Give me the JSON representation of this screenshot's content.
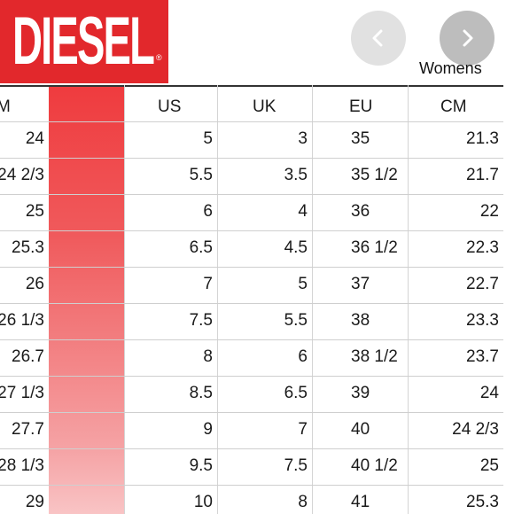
{
  "logo": {
    "text": "DIESEL",
    "mark": "®"
  },
  "nav": {
    "prev_icon": "chevron-left-icon",
    "next_icon": "chevron-right-icon"
  },
  "section_label": "Womens",
  "colors": {
    "brand_red": "#e2282c",
    "strip_red": "#ef3b3e"
  },
  "table": {
    "headers": [
      "M",
      "US",
      "UK",
      "EU",
      "CM"
    ],
    "rows": [
      [
        "24",
        "5",
        "3",
        "35",
        "21.3"
      ],
      [
        "24 2/3",
        "5.5",
        "3.5",
        "35 1/2",
        "21.7"
      ],
      [
        "25",
        "6",
        "4",
        "36",
        "22"
      ],
      [
        "25.3",
        "6.5",
        "4.5",
        "36 1/2",
        "22.3"
      ],
      [
        "26",
        "7",
        "5",
        "37",
        "22.7"
      ],
      [
        "26 1/3",
        "7.5",
        "5.5",
        "38",
        "23.3"
      ],
      [
        "26.7",
        "8",
        "6",
        "38 1/2",
        "23.7"
      ],
      [
        "27 1/3",
        "8.5",
        "6.5",
        "39",
        "24"
      ],
      [
        "27.7",
        "9",
        "7",
        "40",
        "24 2/3"
      ],
      [
        "28 1/3",
        "9.5",
        "7.5",
        "40 1/2",
        "25"
      ],
      [
        "29",
        "10",
        "8",
        "41",
        "25.3"
      ]
    ]
  }
}
